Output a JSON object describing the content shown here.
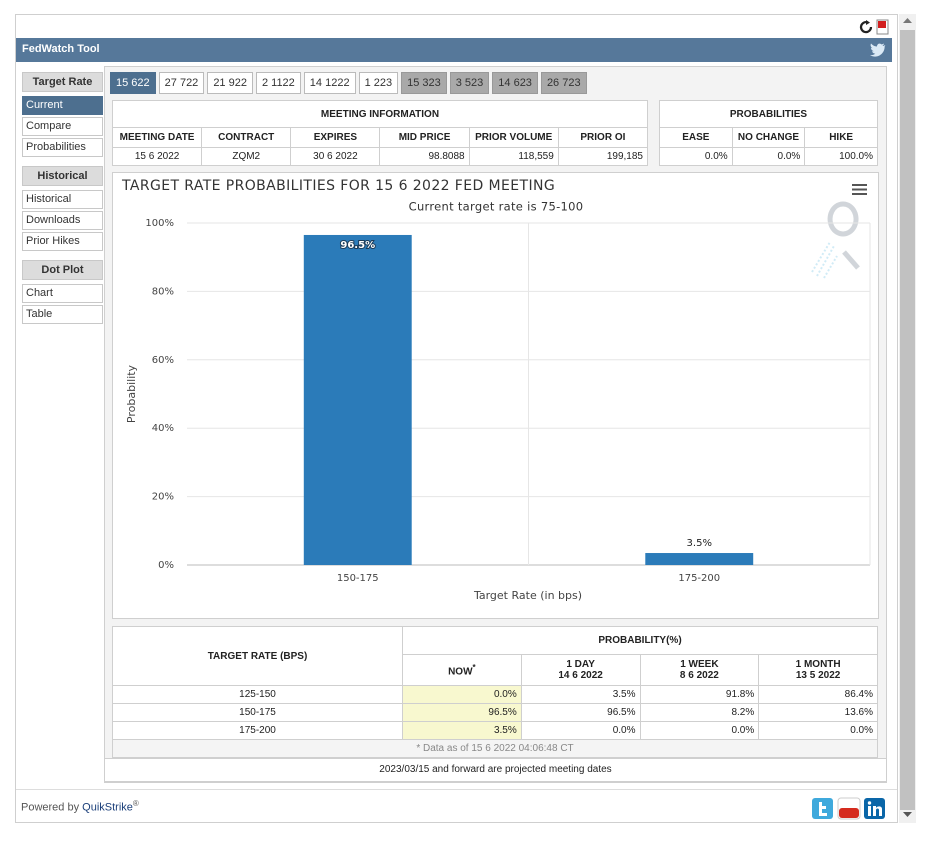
{
  "header": {
    "title": "FedWatch Tool"
  },
  "sidebar": [
    {
      "title": "Target Rate",
      "items": [
        {
          "label": "Current",
          "selected": true
        },
        {
          "label": "Compare"
        },
        {
          "label": "Probabilities"
        }
      ]
    },
    {
      "title": "Historical",
      "items": [
        {
          "label": "Historical"
        },
        {
          "label": "Downloads"
        },
        {
          "label": "Prior Hikes"
        }
      ]
    },
    {
      "title": "Dot Plot",
      "items": [
        {
          "label": "Chart"
        },
        {
          "label": "Table"
        }
      ]
    }
  ],
  "tabs": [
    {
      "label": "15 622",
      "style": "selected"
    },
    {
      "label": "27 722",
      "style": "normal"
    },
    {
      "label": "21 922",
      "style": "normal"
    },
    {
      "label": "2 1122",
      "style": "normal"
    },
    {
      "label": "14 1222",
      "style": "normal"
    },
    {
      "label": "1 223",
      "style": "normal"
    },
    {
      "label": "15 323",
      "style": "projected"
    },
    {
      "label": "3 523",
      "style": "projected"
    },
    {
      "label": "14 623",
      "style": "projected"
    },
    {
      "label": "26 723",
      "style": "projected"
    }
  ],
  "meeting_info": {
    "title": "MEETING INFORMATION",
    "columns": [
      "MEETING DATE",
      "CONTRACT",
      "EXPIRES",
      "MID PRICE",
      "PRIOR VOLUME",
      "PRIOR OI"
    ],
    "row": [
      "15 6 2022",
      "ZQM2",
      "30 6 2022",
      "98.8088",
      "118,559",
      "199,185"
    ]
  },
  "probabilities": {
    "title": "PROBABILITIES",
    "columns": [
      "EASE",
      "NO CHANGE",
      "HIKE"
    ],
    "row": [
      "0.0%",
      "0.0%",
      "100.0%"
    ]
  },
  "chart_data": {
    "type": "bar",
    "title": "TARGET RATE PROBABILITIES FOR 15 6 2022 FED MEETING",
    "subtitle": "Current target rate is 75-100",
    "x_label": "Target Rate (in bps)",
    "y_label": "Probability",
    "categories": [
      "150-175",
      "175-200"
    ],
    "values": [
      96.5,
      3.5
    ],
    "value_labels": [
      "96.5%",
      "3.5%"
    ],
    "color": "#2b7bb9",
    "ylim": [
      0,
      100
    ],
    "yticks": [
      {
        "value": 0,
        "label": "0%"
      },
      {
        "value": 20,
        "label": "20%"
      },
      {
        "value": 40,
        "label": "40%"
      },
      {
        "value": 60,
        "label": "60%"
      },
      {
        "value": 80,
        "label": "80%"
      },
      {
        "value": 100,
        "label": "100%"
      }
    ],
    "grid": true
  },
  "probability_table": {
    "row_header": "TARGET RATE (BPS)",
    "title": "PROBABILITY(%)",
    "columns": [
      {
        "label": "NOW",
        "marker": "*"
      },
      {
        "label": "1 DAY",
        "date": "14 6 2022"
      },
      {
        "label": "1 WEEK",
        "date": "8 6 2022"
      },
      {
        "label": "1 MONTH",
        "date": "13 5 2022"
      }
    ],
    "rows": [
      [
        "125-150",
        "0.0%",
        "3.5%",
        "91.8%",
        "86.4%"
      ],
      [
        "150-175",
        "96.5%",
        "96.5%",
        "8.2%",
        "13.6%"
      ],
      [
        "175-200",
        "3.5%",
        "0.0%",
        "0.0%",
        "0.0%"
      ]
    ],
    "footnote": "* Data as of 15 6 2022 04:06:48 CT"
  },
  "note": "2023/03/15 and forward are projected meeting dates",
  "footer": {
    "prefix": "Powered by",
    "link": "QuikStrike",
    "mark": "®"
  }
}
